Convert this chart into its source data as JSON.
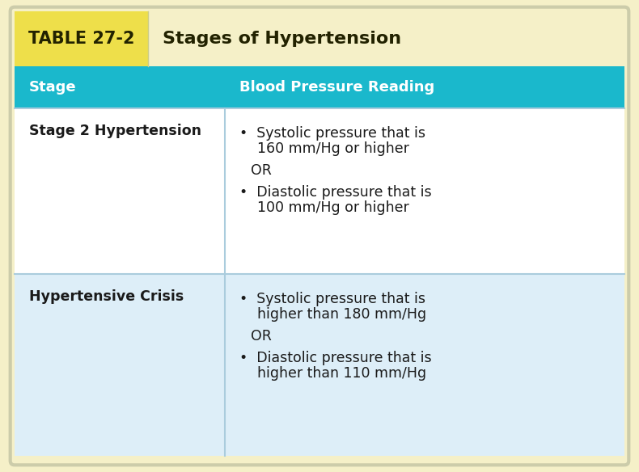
{
  "title_label": "TABLE 27-2",
  "title_text": "Stages of Hypertension",
  "col1_header": "Stage",
  "col2_header": "Blood Pressure Reading",
  "rows": [
    {
      "stage": "Stage 2 Hypertension",
      "bullet1_line1": "•  Systolic pressure that is",
      "bullet1_line2": "    160 mm/Hg or higher",
      "or_text": "OR",
      "bullet2_line1": "•  Diastolic pressure that is",
      "bullet2_line2": "    100 mm/Hg or higher",
      "bg": "#ffffff"
    },
    {
      "stage": "Hypertensive Crisis",
      "bullet1_line1": "•  Systolic pressure that is",
      "bullet1_line2": "    higher than 180 mm/Hg",
      "or_text": "OR",
      "bullet2_line1": "•  Diastolic pressure that is",
      "bullet2_line2": "    higher than 110 mm/Hg",
      "bg": "#ddeef8"
    }
  ],
  "title_bg": "#f5f0c8",
  "title_label_bg": "#eedf4a",
  "header_bg": "#1ab8cc",
  "header_text_color": "#ffffff",
  "stage_text_color": "#1a1a1a",
  "bullet_text_color": "#1a1a1a",
  "divider_color": "#aaccdd",
  "outer_bg": "#f5f0c8",
  "outer_border_color": "#ccccaa",
  "col_split": 0.345,
  "title_label_split": 0.22
}
